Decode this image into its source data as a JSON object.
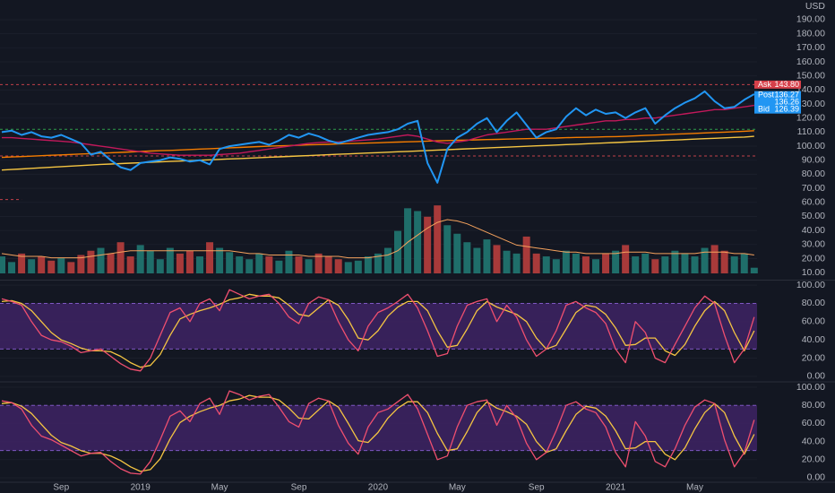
{
  "chart_data": [
    {
      "type": "line",
      "unit": "USD",
      "categories": [
        null,
        null,
        null,
        null,
        null,
        null,
        "Sep",
        null,
        null,
        null,
        null,
        null,
        null,
        null,
        "2019",
        null,
        null,
        null,
        null,
        null,
        null,
        null,
        "May",
        null,
        null,
        null,
        null,
        null,
        null,
        null,
        "Sep",
        null,
        null,
        null,
        null,
        null,
        null,
        null,
        "2020",
        null,
        null,
        null,
        null,
        null,
        null,
        null,
        "May",
        null,
        null,
        null,
        null,
        null,
        null,
        null,
        "Sep",
        null,
        null,
        null,
        null,
        null,
        null,
        null,
        "2021",
        null,
        null,
        null,
        null,
        null,
        null,
        null,
        "May",
        null,
        null,
        null,
        null,
        null,
        null
      ],
      "ylim": [
        5,
        204
      ],
      "yticks": [
        {
          "value": 10,
          "label": "10.00"
        },
        {
          "value": 20,
          "label": "20.00"
        },
        {
          "value": 30,
          "label": "30.00"
        },
        {
          "value": 40,
          "label": "40.00"
        },
        {
          "value": 50,
          "label": "50.00"
        },
        {
          "value": 60,
          "label": "60.00"
        },
        {
          "value": 70,
          "label": "70.00"
        },
        {
          "value": 80,
          "label": "80.00"
        },
        {
          "value": 90,
          "label": "90.00"
        },
        {
          "value": 100,
          "label": "100.00"
        },
        {
          "value": 110,
          "label": "110.00"
        },
        {
          "value": 120,
          "label": "120.00"
        },
        {
          "value": 130,
          "label": "130.00"
        },
        {
          "value": 140,
          "label": "140.00"
        },
        {
          "value": 150,
          "label": "150.00"
        },
        {
          "value": 160,
          "label": "160.00"
        },
        {
          "value": 170,
          "label": "170.00"
        },
        {
          "value": 180,
          "label": "180.00"
        },
        {
          "value": 190,
          "label": "190.00"
        }
      ],
      "series": [
        {
          "color": "#f5c542",
          "values": [
            83,
            83.4,
            83.8,
            84.2,
            84.6,
            85,
            85.4,
            85.8,
            86.2,
            86.6,
            87,
            87.3,
            87.6,
            87.9,
            88.2,
            88.5,
            88.8,
            89.1,
            89.4,
            89.7,
            90,
            90.3,
            90.6,
            90.9,
            91.2,
            91.5,
            91.8,
            92.1,
            92.4,
            92.7,
            93,
            93.3,
            93.6,
            93.9,
            94.2,
            94.5,
            94.8,
            95.1,
            95.4,
            95.7,
            96,
            96.3,
            96.6,
            96.9,
            97.2,
            97.5,
            97.8,
            98.1,
            98.4,
            98.7,
            99,
            99.3,
            99.6,
            99.9,
            100.2,
            100.5,
            100.8,
            101.1,
            101.4,
            101.7,
            102,
            102.3,
            102.6,
            102.9,
            103.2,
            103.5,
            103.8,
            104.1,
            104.4,
            104.7,
            105,
            105.3,
            105.6,
            105.9,
            106.2,
            106.5,
            107
          ]
        },
        {
          "color": "#f57c00",
          "values": [
            92,
            92.3,
            92.6,
            92.9,
            93.2,
            93.5,
            93.8,
            94.1,
            94.4,
            94.7,
            95,
            95.3,
            95.6,
            95.9,
            96.2,
            96.5,
            96.8,
            97,
            97.3,
            97.6,
            97.9,
            98.2,
            98.5,
            98.8,
            99.1,
            99.4,
            99.7,
            100,
            100.2,
            100.4,
            100.7,
            100.9,
            101.1,
            101.3,
            101.6,
            101.8,
            102,
            102.2,
            102.4,
            102.7,
            102.9,
            103.1,
            103.3,
            103.6,
            103.8,
            104,
            104.2,
            104.3,
            104.5,
            104.7,
            104.8,
            105,
            105.2,
            105.3,
            105.5,
            105.7,
            105.8,
            106,
            106.2,
            106.3,
            106.5,
            106.7,
            106.8,
            107,
            107.3,
            107.6,
            107.9,
            108.2,
            108.5,
            108.8,
            109.1,
            109.4,
            109.7,
            110,
            110.3,
            110.6,
            111
          ]
        },
        {
          "color": "#c2185b",
          "values": [
            106,
            106,
            105.5,
            105,
            104.5,
            104,
            103.5,
            103,
            102,
            101,
            100,
            99,
            98,
            97,
            96,
            95,
            94.5,
            94,
            93.5,
            93.5,
            93.5,
            93.5,
            94,
            94.5,
            95,
            96,
            97,
            98,
            99,
            100,
            101,
            102,
            102.5,
            103,
            103,
            103.5,
            104,
            104.5,
            105,
            106,
            107,
            108,
            107,
            105,
            103,
            102,
            103,
            104,
            106,
            108,
            109,
            110,
            111,
            112,
            112,
            112,
            113,
            114,
            115,
            116,
            117,
            118,
            118,
            119,
            119,
            120,
            120,
            121,
            122,
            123,
            124,
            125,
            126,
            126,
            127,
            128,
            129
          ]
        },
        {
          "color": "#2196f3",
          "values": [
            110,
            111,
            108,
            110,
            107,
            106,
            108,
            105,
            102,
            94,
            96,
            90,
            85,
            83,
            88,
            89,
            90,
            92,
            91,
            89,
            90,
            87,
            98,
            100,
            101,
            102,
            103,
            101,
            104,
            108,
            106,
            109,
            107,
            104,
            102,
            104,
            106,
            108,
            109,
            110,
            112,
            116,
            118,
            88,
            74,
            98,
            106,
            110,
            116,
            120,
            110,
            118,
            124,
            115,
            106,
            110,
            112,
            121,
            127,
            122,
            126,
            123,
            124,
            120,
            124,
            127,
            116,
            122,
            127,
            131,
            134,
            139,
            132,
            127,
            128,
            133,
            137
          ]
        }
      ],
      "hlines": [
        {
          "value": 143.8,
          "color": "#c2404a"
        },
        {
          "value": 112,
          "color": "#2e9e4a"
        },
        {
          "value": 93,
          "color": "#c2404a"
        },
        {
          "value": 62,
          "color": "#c2404a",
          "end": 2
        }
      ],
      "price_tags": [
        {
          "name": "Ask",
          "value": 143.8,
          "label": "143.80",
          "color": "#d6404a"
        },
        {
          "name": "Post",
          "value": 136.27,
          "label": "136.27",
          "color": "#2196f3"
        },
        {
          "value": 136.26,
          "label": "136.26",
          "color": "#2196f3"
        },
        {
          "name": "Bid",
          "value": 126.39,
          "label": "126.39",
          "color": "#2196f3"
        }
      ]
    },
    {
      "type": "bar",
      "ylim": [
        0,
        50
      ],
      "up_color": "#1f6e6a",
      "down_color": "#a83a3a",
      "values": [
        12,
        8,
        14,
        10,
        12,
        9,
        11,
        8,
        13,
        16,
        18,
        14,
        22,
        12,
        20,
        16,
        10,
        18,
        14,
        16,
        12,
        22,
        18,
        15,
        12,
        10,
        14,
        12,
        9,
        16,
        12,
        10,
        14,
        12,
        10,
        8,
        9,
        12,
        14,
        18,
        30,
        46,
        44,
        40,
        48,
        34,
        28,
        22,
        18,
        24,
        20,
        16,
        14,
        26,
        14,
        12,
        10,
        16,
        14,
        12,
        10,
        14,
        16,
        20,
        12,
        14,
        10,
        12,
        16,
        14,
        12,
        18,
        20,
        16,
        12,
        14,
        4
      ],
      "ma": {
        "color": "#f5a25d",
        "values": [
          14,
          13,
          12,
          12,
          12,
          11,
          11,
          11,
          11,
          12,
          13,
          14,
          15,
          16,
          16,
          16,
          16,
          16,
          16,
          16,
          16,
          16,
          16,
          16,
          15,
          14,
          14,
          13,
          13,
          13,
          13,
          12,
          12,
          12,
          12,
          11,
          11,
          11,
          12,
          13,
          16,
          22,
          27,
          32,
          36,
          38,
          37,
          35,
          32,
          29,
          26,
          23,
          20,
          19,
          18,
          17,
          16,
          15,
          15,
          14,
          14,
          14,
          14,
          15,
          15,
          15,
          14,
          14,
          14,
          14,
          14,
          15,
          15,
          15,
          14,
          14,
          13
        ]
      }
    },
    {
      "type": "line",
      "ylim": [
        -5,
        105
      ],
      "band": [
        30,
        80
      ],
      "band_color": "#3c2260",
      "edge_color": "#7e57c2",
      "yticks": [
        {
          "value": 0,
          "label": "0.00"
        },
        {
          "value": 20,
          "label": "20.00"
        },
        {
          "value": 40,
          "label": "40.00"
        },
        {
          "value": 60,
          "label": "60.00"
        },
        {
          "value": 80,
          "label": "80.00"
        },
        {
          "value": 100,
          "label": "100.00"
        }
      ],
      "series": [
        {
          "color": "#f5c542",
          "values": [
            82,
            83,
            80,
            72,
            60,
            48,
            40,
            36,
            31,
            28,
            28,
            27,
            22,
            15,
            10,
            12,
            24,
            45,
            63,
            68,
            72,
            75,
            79,
            84,
            86,
            90,
            88,
            88,
            86,
            78,
            68,
            66,
            75,
            84,
            78,
            62,
            42,
            40,
            50,
            66,
            76,
            82,
            82,
            72,
            50,
            32,
            34,
            52,
            72,
            82,
            76,
            72,
            68,
            60,
            42,
            30,
            34,
            52,
            70,
            78,
            76,
            68,
            53,
            34,
            35,
            42,
            42,
            28,
            23,
            35,
            55,
            72,
            82,
            72,
            48,
            28,
            50
          ]
        },
        {
          "color": "#ef4f6f",
          "values": [
            85,
            82,
            78,
            60,
            45,
            40,
            38,
            33,
            26,
            28,
            30,
            22,
            14,
            8,
            6,
            20,
            45,
            70,
            75,
            60,
            80,
            85,
            72,
            95,
            90,
            85,
            88,
            90,
            80,
            65,
            58,
            80,
            87,
            84,
            60,
            40,
            28,
            55,
            70,
            75,
            82,
            90,
            75,
            50,
            22,
            25,
            55,
            78,
            82,
            85,
            60,
            78,
            65,
            40,
            22,
            30,
            50,
            78,
            82,
            75,
            70,
            58,
            30,
            15,
            60,
            48,
            20,
            15,
            35,
            55,
            75,
            88,
            80,
            45,
            15,
            30,
            65
          ]
        }
      ]
    },
    {
      "type": "line",
      "ylim": [
        -5,
        105
      ],
      "band": [
        30,
        80
      ],
      "band_color": "#3c2260",
      "edge_color": "#7e57c2",
      "yticks": [
        {
          "value": 0,
          "label": "0.00"
        },
        {
          "value": 20,
          "label": "20.00"
        },
        {
          "value": 40,
          "label": "40.00"
        },
        {
          "value": 60,
          "label": "60.00"
        },
        {
          "value": 80,
          "label": "80.00"
        },
        {
          "value": 100,
          "label": "100.00"
        }
      ],
      "series": [
        {
          "color": "#f5c542",
          "values": [
            82,
            83,
            79,
            71,
            59,
            47,
            39,
            35,
            30,
            27,
            27,
            24,
            19,
            12,
            7,
            9,
            21,
            43,
            61,
            68,
            73,
            77,
            80,
            85,
            87,
            91,
            89,
            89,
            86,
            77,
            66,
            65,
            75,
            85,
            78,
            60,
            41,
            39,
            50,
            66,
            77,
            84,
            84,
            72,
            49,
            30,
            32,
            51,
            72,
            84,
            77,
            73,
            68,
            59,
            40,
            28,
            32,
            52,
            70,
            79,
            77,
            68,
            52,
            32,
            33,
            40,
            40,
            26,
            20,
            33,
            54,
            72,
            82,
            72,
            46,
            26,
            48
          ]
        },
        {
          "color": "#ef4f6f",
          "values": [
            85,
            83,
            76,
            58,
            46,
            42,
            36,
            30,
            24,
            27,
            28,
            18,
            10,
            5,
            4,
            18,
            42,
            68,
            74,
            62,
            82,
            88,
            70,
            96,
            92,
            86,
            90,
            92,
            78,
            62,
            56,
            82,
            88,
            85,
            58,
            38,
            26,
            56,
            72,
            76,
            84,
            92,
            76,
            48,
            20,
            24,
            56,
            80,
            84,
            86,
            58,
            80,
            66,
            38,
            20,
            28,
            52,
            80,
            84,
            76,
            72,
            56,
            28,
            12,
            62,
            46,
            18,
            12,
            32,
            58,
            78,
            86,
            82,
            42,
            12,
            28,
            64
          ]
        }
      ]
    }
  ]
}
